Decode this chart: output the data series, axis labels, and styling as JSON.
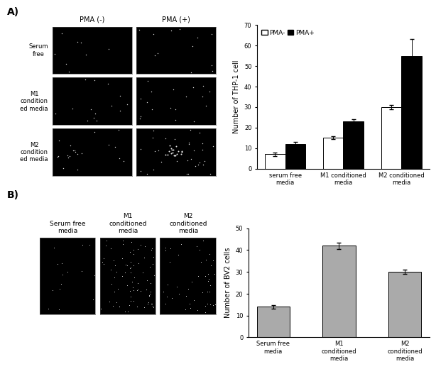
{
  "panel_A_label": "A)",
  "panel_B_label": "B)",
  "row_labels_A": [
    "Serum\nfree",
    "M1\ncondition\ned media",
    "M2\ncondition\ned media"
  ],
  "col_labels_A": [
    "PMA (-)",
    "PMA (+)"
  ],
  "col_labels_B": [
    "Serum free\nmedia",
    "M1\nconditioned\nmedia",
    "M2\nconditioned\nmedia"
  ],
  "chart_A": {
    "categories": [
      "serum free\nmedia",
      "M1 conditioned\nmedia",
      "M2 conditioned\nmedia"
    ],
    "pma_minus": [
      7,
      15,
      30
    ],
    "pma_plus": [
      12,
      23,
      55
    ],
    "pma_minus_err": [
      0.8,
      0.8,
      1.0
    ],
    "pma_plus_err": [
      1.0,
      1.0,
      8.0
    ],
    "ylabel": "Number of THP-1 cell",
    "ylim": [
      0,
      70
    ],
    "yticks": [
      0,
      10,
      20,
      30,
      40,
      50,
      60,
      70
    ],
    "legend_labels": [
      "PMA-",
      "PMA+"
    ],
    "bar_width": 0.35,
    "color_minus": "#ffffff",
    "color_plus": "#000000",
    "edge_color": "#000000"
  },
  "chart_B": {
    "categories": [
      "Serum free\nmedia",
      "M1\nconditioned\nmedia",
      "M2\nconditioned\nmedia"
    ],
    "values": [
      14,
      42,
      30
    ],
    "errors": [
      0.8,
      1.5,
      1.0
    ],
    "ylabel": "Number of BV2 cells",
    "ylim": [
      0,
      50
    ],
    "yticks": [
      0,
      10,
      20,
      30,
      40,
      50
    ],
    "bar_color": "#aaaaaa",
    "edge_color": "#000000"
  },
  "figure_bg": "#ffffff",
  "font_size": 7,
  "axis_font_size": 6,
  "label_font_size": 10,
  "img_dot_size": 1.0
}
